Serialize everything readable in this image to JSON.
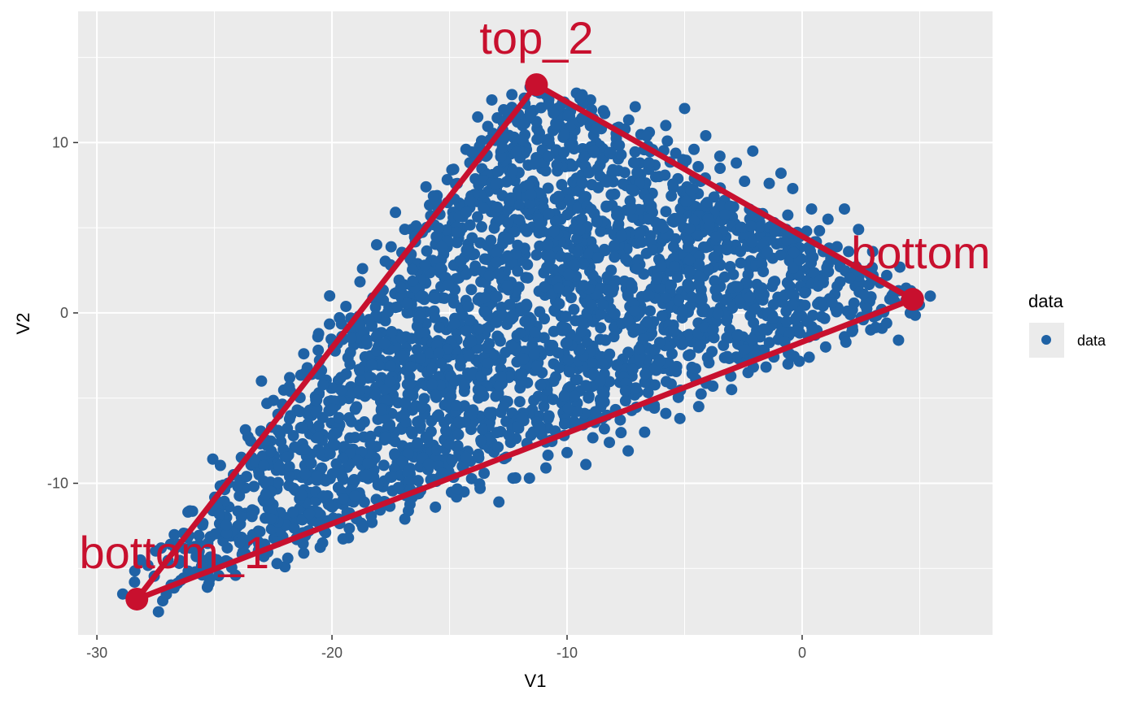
{
  "chart_data": {
    "type": "scatter",
    "xlabel": "V1",
    "ylabel": "V2",
    "xlim": [
      -30.8,
      8.1
    ],
    "ylim": [
      -18.9,
      17.7
    ],
    "x_ticks": [
      -30,
      -20,
      -10,
      0
    ],
    "x_tick_labels": [
      "-30",
      "-20",
      "-10",
      "0"
    ],
    "y_ticks": [
      -10,
      0,
      10
    ],
    "y_tick_labels": [
      "-10",
      "0",
      "10"
    ],
    "grid": true,
    "legend": {
      "title": "data",
      "position": "right",
      "entries": [
        "data"
      ]
    },
    "series": [
      {
        "name": "data",
        "color": "#1f62a5",
        "description_shape": "dense point cloud filling triangle",
        "points": [
          [
            -28.9,
            -16.5
          ],
          [
            -28.4,
            -15.8
          ],
          [
            -27.2,
            -16.9
          ],
          [
            -26.5,
            -14.7
          ],
          [
            -25.8,
            -13.9
          ],
          [
            -25.2,
            -15.6
          ],
          [
            -24.6,
            -12.4
          ],
          [
            -24.0,
            -10.2
          ],
          [
            -23.5,
            -8.6
          ],
          [
            -23.0,
            -4.0
          ],
          [
            -22.3,
            -6.9
          ],
          [
            -21.8,
            -3.8
          ],
          [
            -21.2,
            -2.4
          ],
          [
            -20.6,
            -1.4
          ],
          [
            -20.1,
            1.0
          ],
          [
            -19.2,
            -0.3
          ],
          [
            -18.7,
            2.6
          ],
          [
            -18.1,
            4.0
          ],
          [
            -17.3,
            5.9
          ],
          [
            -16.6,
            4.9
          ],
          [
            -16.0,
            7.4
          ],
          [
            -15.5,
            6.2
          ],
          [
            -14.9,
            8.4
          ],
          [
            -14.3,
            9.6
          ],
          [
            -13.8,
            11.5
          ],
          [
            -13.2,
            12.5
          ],
          [
            -12.7,
            10.2
          ],
          [
            -12.0,
            9.1
          ],
          [
            -11.4,
            13.1
          ],
          [
            -10.8,
            12.7
          ],
          [
            -10.2,
            12.3
          ],
          [
            -9.6,
            12.9
          ],
          [
            -9.0,
            12.5
          ],
          [
            -8.4,
            11.7
          ],
          [
            -7.8,
            10.9
          ],
          [
            -7.1,
            12.1
          ],
          [
            -6.5,
            10.6
          ],
          [
            -5.8,
            11.0
          ],
          [
            -5.0,
            12.0
          ],
          [
            -4.6,
            9.6
          ],
          [
            -4.1,
            10.4
          ],
          [
            -3.5,
            9.2
          ],
          [
            -2.8,
            8.8
          ],
          [
            -2.1,
            9.5
          ],
          [
            -1.4,
            7.6
          ],
          [
            -0.9,
            8.2
          ],
          [
            -0.4,
            7.3
          ],
          [
            0.4,
            6.1
          ],
          [
            1.1,
            5.5
          ],
          [
            1.8,
            6.1
          ],
          [
            2.4,
            4.9
          ],
          [
            3.0,
            3.6
          ],
          [
            3.6,
            2.2
          ],
          [
            4.1,
            1.3
          ],
          [
            4.6,
            0.0
          ],
          [
            4.1,
            -1.6
          ],
          [
            3.4,
            -0.9
          ],
          [
            2.6,
            -0.4
          ],
          [
            1.8,
            -1.4
          ],
          [
            1.0,
            -2.0
          ],
          [
            0.3,
            -2.6
          ],
          [
            -0.6,
            -3.0
          ],
          [
            -1.7,
            -2.2
          ],
          [
            -2.3,
            -3.5
          ],
          [
            -3.0,
            -4.5
          ],
          [
            -3.8,
            -4.3
          ],
          [
            -4.4,
            -5.5
          ],
          [
            -5.2,
            -6.2
          ],
          [
            -5.8,
            -5.9
          ],
          [
            -6.7,
            -7.0
          ],
          [
            -7.4,
            -8.1
          ],
          [
            -8.2,
            -7.6
          ],
          [
            -9.2,
            -8.9
          ],
          [
            -10.0,
            -8.2
          ],
          [
            -10.9,
            -9.1
          ],
          [
            -11.6,
            -9.7
          ],
          [
            -12.3,
            -9.7
          ],
          [
            -12.9,
            -11.1
          ],
          [
            -13.7,
            -10.3
          ],
          [
            -14.7,
            -10.8
          ],
          [
            -15.6,
            -11.4
          ],
          [
            -16.9,
            -12.1
          ],
          [
            -18.3,
            -12.3
          ],
          [
            -19.3,
            -13.2
          ],
          [
            -20.4,
            -13.5
          ],
          [
            -21.2,
            -14.1
          ],
          [
            -22.0,
            -14.9
          ],
          [
            -22.9,
            -14.3
          ],
          [
            -24.1,
            -15.4
          ],
          [
            -25.3,
            -16.1
          ],
          [
            -26.2,
            -13.0
          ],
          [
            -25.0,
            -11.3
          ],
          [
            -23.1,
            -9.5
          ],
          [
            -22.0,
            -8.4
          ],
          [
            -20.8,
            -5.9
          ],
          [
            -16.2,
            2.2
          ],
          [
            -15.8,
            5.7
          ],
          [
            -13.5,
            8.1
          ],
          [
            -11.9,
            11.0
          ],
          [
            -9.8,
            10.3
          ],
          [
            -8.6,
            9.8
          ],
          [
            -6.9,
            8.8
          ],
          [
            -4.9,
            7.4
          ],
          [
            -3.3,
            6.6
          ],
          [
            -1.2,
            5.3
          ],
          [
            0.9,
            3.6
          ],
          [
            2.2,
            2.3
          ],
          [
            0.2,
            -0.5
          ],
          [
            -2.6,
            -1.9
          ],
          [
            -5.6,
            -3.4
          ],
          [
            -8.8,
            -5.8
          ],
          [
            -12.4,
            -7.6
          ],
          [
            -15.4,
            -8.9
          ],
          [
            -18.8,
            -10.8
          ],
          [
            -21.5,
            -12.0
          ],
          [
            -24.3,
            -13.1
          ],
          [
            -19.1,
            -8.0
          ],
          [
            -17.8,
            -5.1
          ],
          [
            -15.1,
            -2.6
          ],
          [
            -13.2,
            0.6
          ],
          [
            -11.3,
            3.4
          ],
          [
            -9.1,
            6.2
          ],
          [
            -7.4,
            4.1
          ],
          [
            -5.3,
            2.1
          ],
          [
            -3.0,
            1.0
          ],
          [
            -6.4,
            -1.2
          ],
          [
            -9.9,
            -3.0
          ],
          [
            -12.0,
            -4.4
          ],
          [
            -14.6,
            -5.6
          ],
          [
            -17.0,
            -7.8
          ]
        ]
      }
    ],
    "vertices": [
      {
        "name": "bottom_1",
        "x": -28.3,
        "y": -16.8
      },
      {
        "name": "top_2",
        "x": -11.3,
        "y": 13.4
      },
      {
        "name": "bottom",
        "x": 4.7,
        "y": 0.8
      }
    ],
    "triangle_color": "#c8102e"
  },
  "labels": {
    "bottom_1": "bottom_1",
    "top_2": "top_2",
    "bottom": "bottom"
  }
}
